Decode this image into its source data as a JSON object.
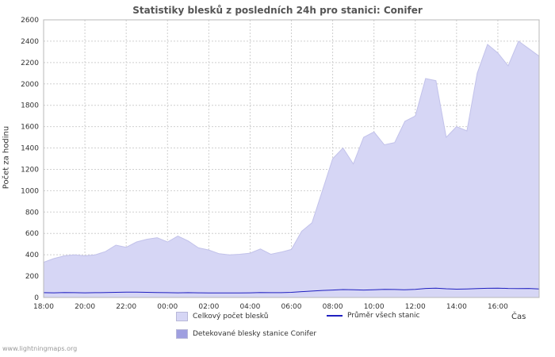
{
  "page": {
    "watermark": "www.lightningmaps.org",
    "xaxis_caption": "Čas"
  },
  "chart_data": {
    "type": "area",
    "title": "Statistiky blesků z posledních 24h pro stanici: Conifer",
    "ylabel": "Počet za hodinu",
    "xlabel": "Čas",
    "ylim": [
      0,
      2600
    ],
    "ytick_step": 200,
    "grid": true,
    "legend_position": "bottom",
    "x_hours_span": 24,
    "x_points_interval_hours": 0.5,
    "x_tick_hours": [
      0,
      2,
      4,
      6,
      8,
      10,
      12,
      14,
      16,
      18,
      20,
      22
    ],
    "x_tick_labels": [
      "18:00",
      "20:00",
      "22:00",
      "00:00",
      "02:00",
      "04:00",
      "06:00",
      "08:00",
      "10:00",
      "12:00",
      "14:00",
      "16:00"
    ],
    "colors": {
      "total_area": "#d6d6f5",
      "total_edge": "#c2c2ea",
      "detected_area": "#9f9fe0",
      "average_line": "#2020c0",
      "grid_line": "#cfcfcf",
      "plot_border": "#b8b8b8"
    },
    "series": [
      {
        "name": "Celkový počet blesků",
        "type": "area",
        "color": "#d6d6f5",
        "values": [
          330,
          365,
          390,
          400,
          390,
          400,
          430,
          490,
          470,
          520,
          545,
          560,
          520,
          575,
          530,
          465,
          445,
          410,
          400,
          405,
          415,
          455,
          405,
          425,
          450,
          620,
          700,
          1000,
          1300,
          1400,
          1250,
          1500,
          1550,
          1430,
          1450,
          1650,
          1700,
          2050,
          2030,
          1500,
          1600,
          1560,
          2100,
          2370,
          2290,
          2170,
          2400,
          2330,
          2260
        ]
      },
      {
        "name": "Detekované blesky stanice Conifer",
        "type": "area",
        "color": "#9f9fe0",
        "values": [
          0,
          0,
          0,
          0,
          0,
          0,
          0,
          0,
          0,
          0,
          0,
          0,
          0,
          0,
          0,
          0,
          0,
          0,
          0,
          0,
          0,
          0,
          0,
          0,
          0,
          0,
          0,
          0,
          0,
          0,
          0,
          0,
          0,
          0,
          0,
          0,
          0,
          0,
          0,
          0,
          0,
          0,
          0,
          0,
          0,
          0,
          0,
          0,
          0
        ]
      },
      {
        "name": "Průměr všech stanic",
        "type": "line",
        "color": "#2020c0",
        "values": [
          45,
          44,
          46,
          45,
          44,
          45,
          46,
          48,
          50,
          50,
          48,
          47,
          45,
          44,
          45,
          44,
          43,
          42,
          42,
          43,
          44,
          46,
          45,
          45,
          48,
          55,
          60,
          66,
          70,
          74,
          72,
          70,
          73,
          76,
          75,
          72,
          76,
          85,
          88,
          82,
          78,
          80,
          84,
          86,
          88,
          85,
          84,
          85,
          80
        ]
      }
    ]
  }
}
